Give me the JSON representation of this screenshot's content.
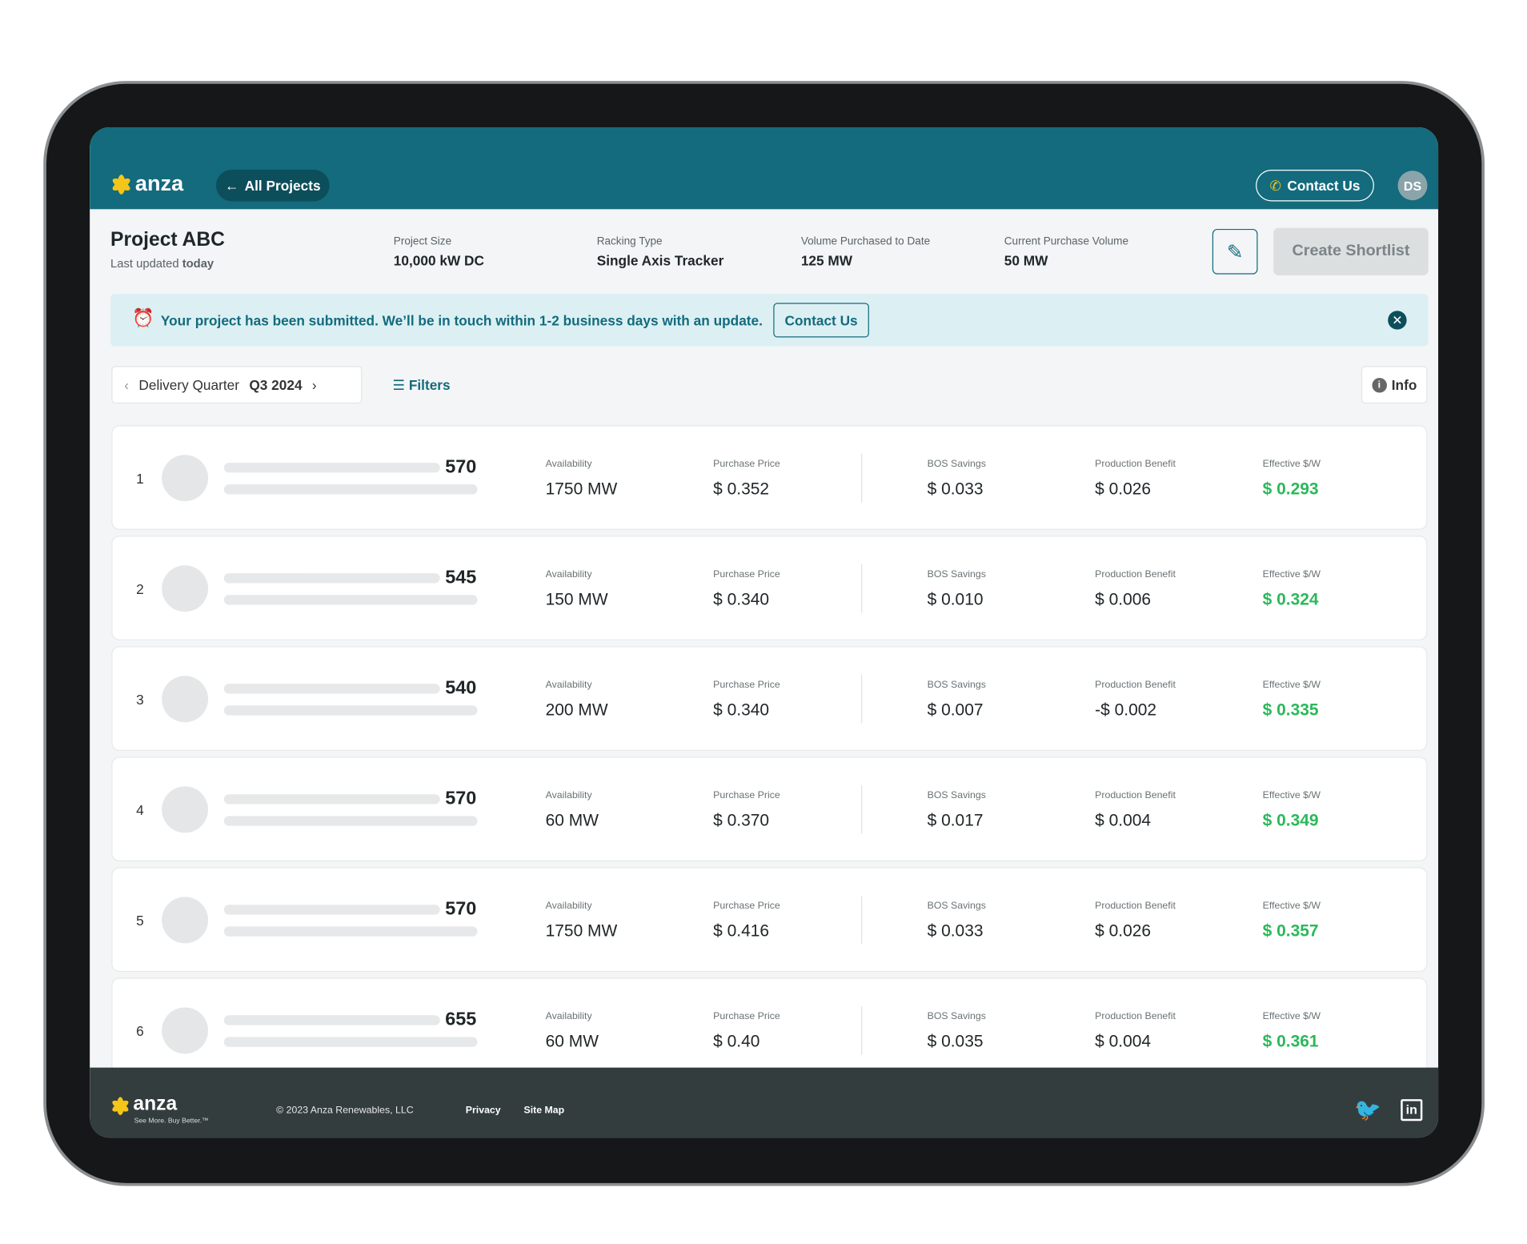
{
  "header": {
    "logo": "anza",
    "back_button": "All Projects",
    "contact_button": "Contact Us",
    "avatar": "DS"
  },
  "project": {
    "title": "Project ABC",
    "updated_prefix": "Last updated",
    "updated_value": "today",
    "stats": [
      {
        "label": "Project Size",
        "value": "10,000 kW DC"
      },
      {
        "label": "Racking Type",
        "value": "Single Axis Tracker"
      },
      {
        "label": "Volume Purchased to Date",
        "value": "125 MW"
      },
      {
        "label": "Current Purchase Volume",
        "value": "50 MW"
      }
    ],
    "create_button": "Create Shortlist"
  },
  "banner": {
    "message": "Your project has been submitted. We’ll be in touch within 1-2 business days with an update.",
    "button": "Contact Us"
  },
  "toolbar": {
    "quarter_label": "Delivery Quarter",
    "quarter_value": "Q3 2024",
    "filters": "Filters",
    "info": "Info"
  },
  "table": {
    "columns": [
      "Availability",
      "Purchase Price",
      "BOS Savings",
      "Production Benefit",
      "Effective $/W"
    ],
    "rows": [
      {
        "rank": 1,
        "score": 570,
        "cells": [
          "1750 MW",
          "$ 0.352",
          "$ 0.033",
          "$ 0.026",
          "$ 0.293"
        ]
      },
      {
        "rank": 2,
        "score": 545,
        "cells": [
          "150 MW",
          "$ 0.340",
          "$ 0.010",
          "$ 0.006",
          "$ 0.324"
        ]
      },
      {
        "rank": 3,
        "score": 540,
        "cells": [
          "200 MW",
          "$ 0.340",
          "$ 0.007",
          "-$ 0.002",
          "$ 0.335"
        ]
      },
      {
        "rank": 4,
        "score": 570,
        "cells": [
          "60 MW",
          "$ 0.370",
          "$ 0.017",
          "$ 0.004",
          "$ 0.349"
        ]
      },
      {
        "rank": 5,
        "score": 570,
        "cells": [
          "1750 MW",
          "$ 0.416",
          "$ 0.033",
          "$ 0.026",
          "$ 0.357"
        ]
      },
      {
        "rank": 6,
        "score": 655,
        "cells": [
          "60 MW",
          "$ 0.40",
          "$ 0.035",
          "$ 0.004",
          "$ 0.361"
        ]
      }
    ]
  },
  "footer": {
    "logo": "anza",
    "tagline": "See More. Buy Better.™",
    "copyright": "© 2023 Anza Renewables, LLC",
    "links": [
      "Privacy",
      "Site Map"
    ]
  }
}
